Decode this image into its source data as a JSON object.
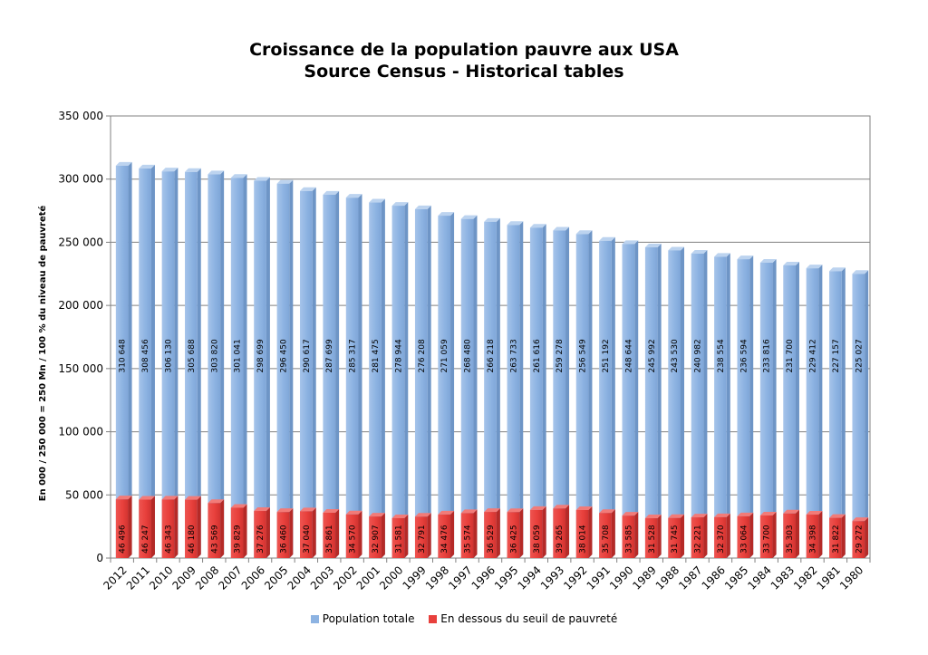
{
  "colors": {
    "population": "#8db3e2",
    "poverty": "#e8403c"
  },
  "chart_data": {
    "type": "bar",
    "title": "Croissance de la population pauvre aux USA",
    "subtitle": "Source Census - Historical tables",
    "ylabel": "En 000 / 250 000 = 250 Mn / 100  % du niveau de pauvreté",
    "xlabel": "",
    "ylim": [
      0,
      350000
    ],
    "yticks": [
      0,
      50000,
      100000,
      150000,
      200000,
      250000,
      300000,
      350000
    ],
    "ytick_labels": [
      "0",
      "50 000",
      "100 000",
      "150 000",
      "200 000",
      "250 000",
      "300 000",
      "350 000"
    ],
    "grid": true,
    "legend_position": "bottom",
    "categories": [
      "2012",
      "2011",
      "2010",
      "2009",
      "2008",
      "2007",
      "2006",
      "2005",
      "2004",
      "2003",
      "2002",
      "2001",
      "2000",
      "1999",
      "1998",
      "1997",
      "1996",
      "1995",
      "1994",
      "1993",
      "1992",
      "1991",
      "1990",
      "1989",
      "1988",
      "1987",
      "1986",
      "1985",
      "1984",
      "1983",
      "1982",
      "1981",
      "1980"
    ],
    "series": [
      {
        "name": "Population totale",
        "values": [
          310648,
          308456,
          306130,
          305688,
          303820,
          301041,
          298699,
          296450,
          290617,
          287699,
          285317,
          281475,
          278944,
          276208,
          271059,
          268480,
          266218,
          263733,
          261616,
          259278,
          256549,
          251192,
          248644,
          245992,
          243530,
          240982,
          238554,
          236594,
          233816,
          231700,
          229412,
          227157,
          225027
        ],
        "labels": [
          "310 648",
          "308 456",
          "306 130",
          "305 688",
          "303 820",
          "301 041",
          "298 699",
          "296 450",
          "290 617",
          "287 699",
          "285 317",
          "281 475",
          "278 944",
          "276 208",
          "271 059",
          "268 480",
          "266 218",
          "263 733",
          "261 616",
          "259 278",
          "256 549",
          "251 192",
          "248 644",
          "245 992",
          "243 530",
          "240 982",
          "238 554",
          "236 594",
          "233 816",
          "231 700",
          "229 412",
          "227 157",
          "225 027"
        ]
      },
      {
        "name": "En dessous du seuil de pauvreté",
        "values": [
          46496,
          46247,
          46343,
          46180,
          43569,
          39829,
          37276,
          36460,
          37040,
          35861,
          34570,
          32907,
          31581,
          32791,
          34476,
          35574,
          36529,
          36425,
          38059,
          39265,
          38014,
          35708,
          33585,
          31528,
          31745,
          32221,
          32370,
          33064,
          33700,
          35303,
          34398,
          31822,
          29272
        ],
        "labels": [
          "46 496",
          "46 247",
          "46 343",
          "46 180",
          "43 569",
          "39 829",
          "37 276",
          "36 460",
          "37 040",
          "35 861",
          "34 570",
          "32 907",
          "31 581",
          "32 791",
          "34 476",
          "35 574",
          "36 529",
          "36 425",
          "38 059",
          "39 265",
          "38 014",
          "35 708",
          "33 585",
          "31 528",
          "31 745",
          "32 221",
          "32 370",
          "33 064",
          "33 700",
          "35 303",
          "34 398",
          "31 822",
          "29 272"
        ]
      }
    ]
  }
}
